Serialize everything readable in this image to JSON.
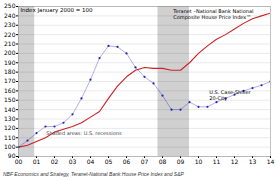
{
  "chart_data": {
    "type": "line",
    "ylabel": "Index January 2000 = 100",
    "annotations": [
      "Teranet –National Bank National\nComposite House Price Index™",
      "U.S. Case-Shiller\n20-City",
      "Shaded areas: U.S. recessions"
    ],
    "footnote": "NBF Economics and Strategy, Teranet-National Bank House Price Index and S&P",
    "x": [
      0,
      0.5,
      1.0,
      1.5,
      2.0,
      2.5,
      3.0,
      3.5,
      4.0,
      4.5,
      5.0,
      5.5,
      6.0,
      6.5,
      7.0,
      7.5,
      8.0,
      8.5,
      9.0,
      9.5,
      10.0,
      10.5,
      11.0,
      11.5,
      12.0,
      12.5,
      13.0,
      13.5,
      14.0
    ],
    "series": [
      {
        "color": "#cc2222",
        "line_style": "solid",
        "values": [
          100,
          102,
          106,
          110,
          116,
          119,
          122,
          126,
          132,
          138,
          152,
          165,
          175,
          182,
          185,
          184,
          184,
          182,
          182,
          190,
          200,
          208,
          215,
          220,
          226,
          232,
          237,
          240,
          243
        ]
      },
      {
        "color": "#2222bb",
        "line_style": "solid",
        "marker": "dot",
        "values": [
          100,
          107,
          115,
          122,
          122,
          126,
          135,
          152,
          172,
          195,
          208,
          207,
          200,
          185,
          175,
          168,
          155,
          140,
          140,
          148,
          143,
          143,
          148,
          152,
          156,
          160,
          163,
          166,
          170
        ]
      }
    ],
    "recession_bands": [
      [
        0.0,
        0.9
      ],
      [
        7.75,
        9.5
      ]
    ],
    "xlim": [
      0,
      14
    ],
    "xticks": [
      {
        "value": 0,
        "label": "00"
      },
      {
        "value": 1,
        "label": "01"
      },
      {
        "value": 2,
        "label": "02"
      },
      {
        "value": 3,
        "label": "03"
      },
      {
        "value": 4,
        "label": "04"
      },
      {
        "value": 5,
        "label": "05"
      },
      {
        "value": 6,
        "label": "06"
      },
      {
        "value": 7,
        "label": "07"
      },
      {
        "value": 8,
        "label": "08"
      },
      {
        "value": 9,
        "label": "09"
      },
      {
        "value": 10,
        "label": "10"
      },
      {
        "value": 11,
        "label": "11"
      },
      {
        "value": 12,
        "label": "12"
      },
      {
        "value": 13,
        "label": "13"
      },
      {
        "value": 14,
        "label": "14"
      }
    ],
    "ylim": [
      90,
      250
    ],
    "yticks": [
      90,
      100,
      110,
      120,
      130,
      140,
      150,
      160,
      170,
      180,
      190,
      200,
      210,
      220,
      230,
      240,
      250
    ],
    "grid": true
  }
}
